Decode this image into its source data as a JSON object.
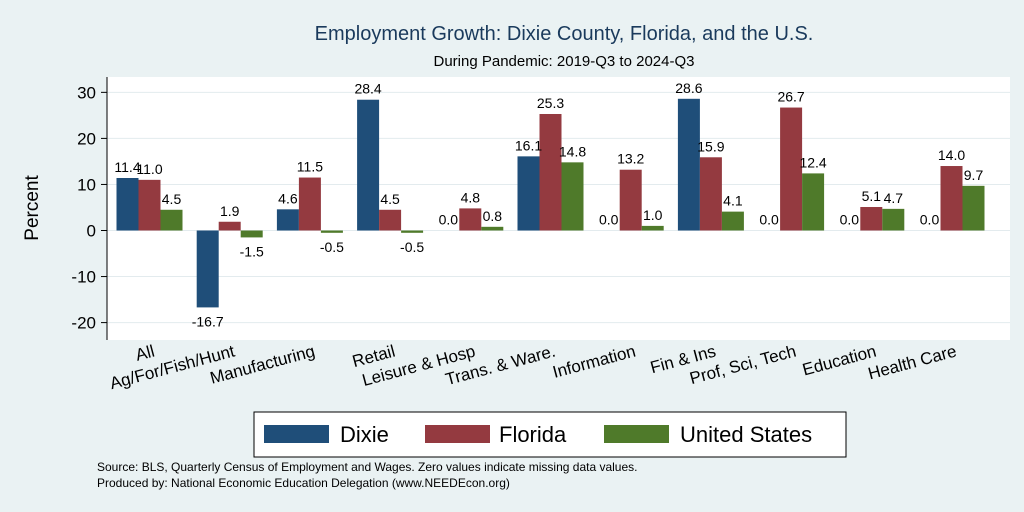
{
  "chart_data": {
    "type": "bar",
    "title": "Employment Growth: Dixie County, Florida, and the U.S.",
    "subtitle": "During Pandemic: 2019-Q3 to 2024-Q3",
    "ylabel": "Percent",
    "xlabel": "",
    "ylim": [
      -24,
      34
    ],
    "yticks": [
      30,
      20,
      10,
      0,
      -10,
      -20
    ],
    "ytick_labels": [
      "30",
      "20",
      "10",
      "0",
      "-10",
      "-20"
    ],
    "grid": true,
    "legend_position": "bottom",
    "categories": [
      "All",
      "Ag/For/Fish/Hunt",
      "Manufacturing",
      "Retail",
      "Leisure & Hosp",
      "Trans. & Ware.",
      "Information",
      "Fin & Ins",
      "Prof, Sci, Tech",
      "Education",
      "Health Care"
    ],
    "series": [
      {
        "name": "Dixie",
        "color": "#1f4e79",
        "values": [
          11.4,
          -16.7,
          4.6,
          28.4,
          0.0,
          16.1,
          0.0,
          28.6,
          0.0,
          0.0,
          0.0
        ],
        "labels": [
          "11.4",
          "-16.7",
          "4.6",
          "28.4",
          "0.0",
          "16.1",
          "0.0",
          "28.6",
          "0.0",
          "0.0",
          "0.0"
        ]
      },
      {
        "name": "Florida",
        "color": "#943a40",
        "values": [
          11.0,
          1.9,
          11.5,
          4.5,
          4.8,
          25.3,
          13.2,
          15.9,
          26.7,
          5.1,
          14.0
        ],
        "labels": [
          "11.0",
          "1.9",
          "11.5",
          "4.5",
          "4.8",
          "25.3",
          "13.2",
          "15.9",
          "26.7",
          "5.1",
          "14.0"
        ]
      },
      {
        "name": "United States",
        "color": "#4f7a2a",
        "values": [
          4.5,
          -1.5,
          -0.5,
          -0.5,
          0.8,
          14.8,
          1.0,
          4.1,
          12.4,
          4.7,
          9.7
        ],
        "labels": [
          "4.5",
          "-1.5",
          "-0.5",
          "-0.5",
          "0.8",
          "14.8",
          "1.0",
          "4.1",
          "12.4",
          "4.7",
          "9.7"
        ]
      }
    ],
    "notes": [
      "Source: BLS, Quarterly Census of Employment and Wages. Zero values indicate missing data values.",
      "Produced by: National Economic Education Delegation (www.NEEDEcon.org)"
    ]
  },
  "colors": {
    "background": "#eaf2f3",
    "plot_background": "#ffffff",
    "grid": "#e3ebee"
  }
}
